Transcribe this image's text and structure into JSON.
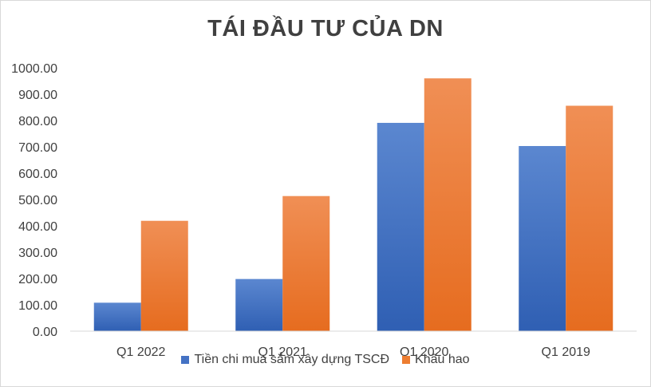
{
  "chart_data": {
    "type": "bar",
    "title": "TÁI ĐẦU TƯ CỦA DN",
    "categories": [
      "Q1 2022",
      "Q1 2021",
      "Q1 2020",
      "Q1 2019"
    ],
    "series": [
      {
        "name": "Tiền chi mua sắm xây dựng TSCĐ",
        "values": [
          108,
          198,
          791,
          703
        ],
        "color": "#4472c4"
      },
      {
        "name": "Khấu hao",
        "values": [
          419,
          513,
          960,
          856
        ],
        "color": "#ed7d31"
      }
    ],
    "ylim": [
      0,
      1000
    ],
    "yticks": [
      "0.00",
      "100.00",
      "200.00",
      "300.00",
      "400.00",
      "500.00",
      "600.00",
      "700.00",
      "800.00",
      "900.00",
      "1000.00"
    ],
    "grid": false,
    "legend_position": "bottom"
  }
}
